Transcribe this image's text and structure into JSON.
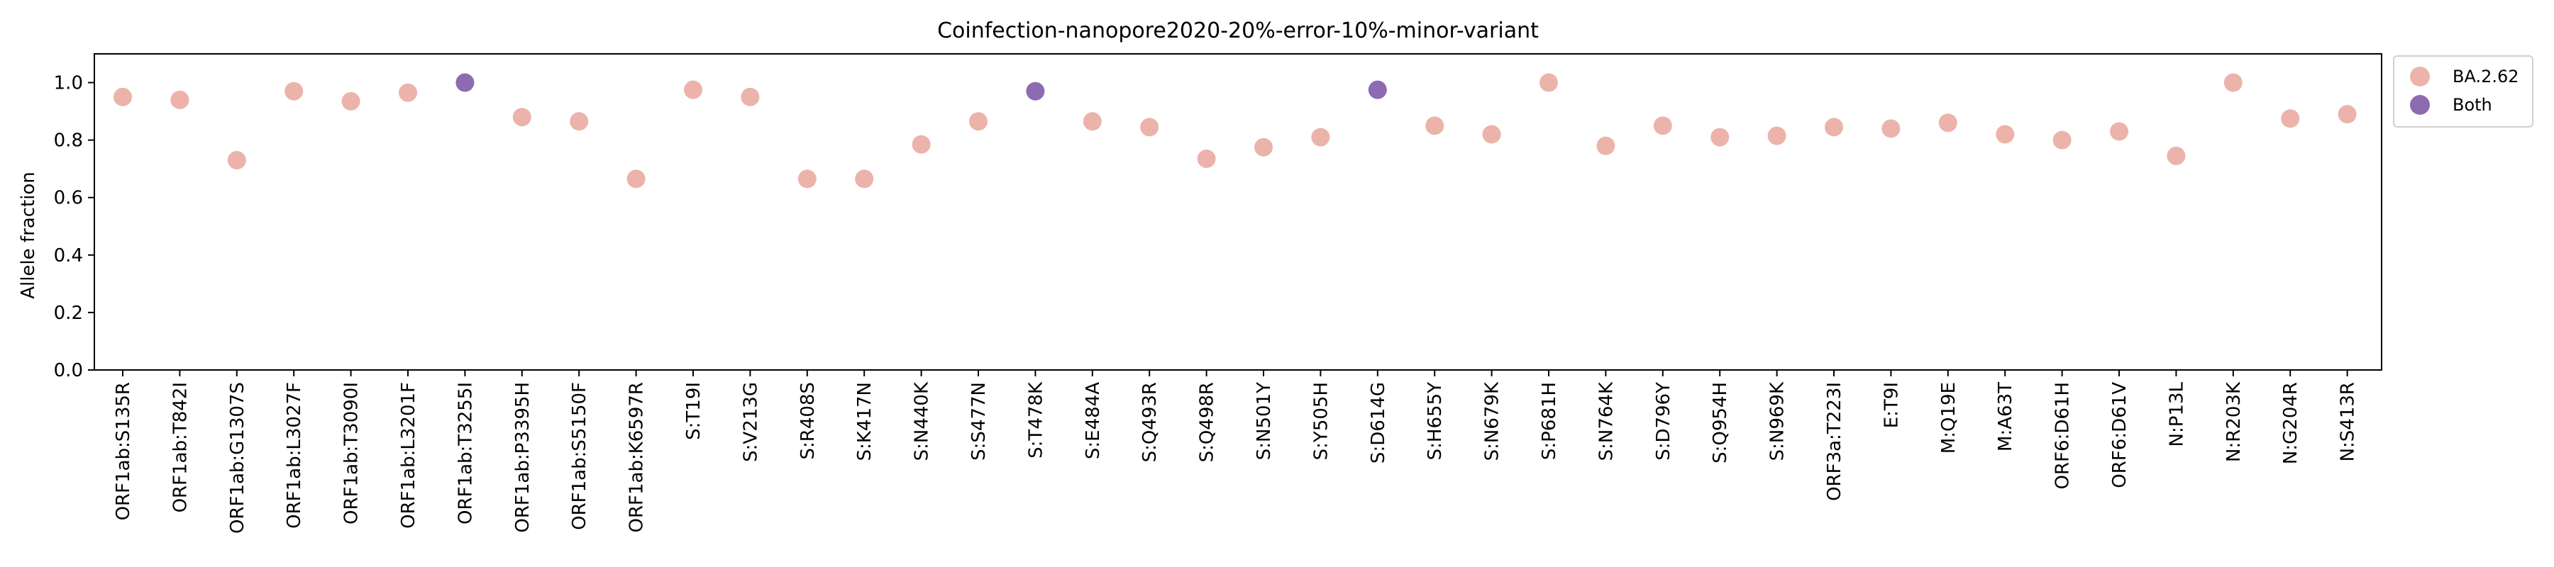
{
  "chart_data": {
    "type": "scatter",
    "title": "Coinfection-nanopore2020-20%-error-10%-minor-variant",
    "xlabel": "",
    "ylabel": "Allele fraction",
    "ylim": [
      0.0,
      1.1
    ],
    "yticks": [
      "0.0",
      "0.2",
      "0.4",
      "0.6",
      "0.8",
      "1.0"
    ],
    "grid": false,
    "legend_position": "outside-top-right",
    "categories": [
      "ORF1ab:S135R",
      "ORF1ab:T842I",
      "ORF1ab:G1307S",
      "ORF1ab:L3027F",
      "ORF1ab:T3090I",
      "ORF1ab:L3201F",
      "ORF1ab:T3255I",
      "ORF1ab:P3395H",
      "ORF1ab:S5150F",
      "ORF1ab:K6597R",
      "S:T19I",
      "S:V213G",
      "S:R408S",
      "S:K417N",
      "S:N440K",
      "S:S477N",
      "S:T478K",
      "S:E484A",
      "S:Q493R",
      "S:Q498R",
      "S:N501Y",
      "S:Y505H",
      "S:D614G",
      "S:H655Y",
      "S:N679K",
      "S:P681H",
      "S:N764K",
      "S:D796Y",
      "S:Q954H",
      "S:N969K",
      "ORF3a:T223I",
      "E:T9I",
      "M:Q19E",
      "M:A63T",
      "ORF6:D61H",
      "ORF6:D61V",
      "N:P13L",
      "N:R203K",
      "N:G204R",
      "N:S413R"
    ],
    "values": [
      0.95,
      0.94,
      0.73,
      0.97,
      0.935,
      0.965,
      1.0,
      0.88,
      0.865,
      0.665,
      0.975,
      0.95,
      0.665,
      0.665,
      0.785,
      0.865,
      0.97,
      0.865,
      0.845,
      0.735,
      0.775,
      0.81,
      0.975,
      0.85,
      0.82,
      1.0,
      0.78,
      0.85,
      0.81,
      0.815,
      0.845,
      0.84,
      0.86,
      0.82,
      0.8,
      0.83,
      0.745,
      1.0,
      0.875,
      0.89
    ],
    "groups": [
      "BA.2.62",
      "BA.2.62",
      "BA.2.62",
      "BA.2.62",
      "BA.2.62",
      "BA.2.62",
      "Both",
      "BA.2.62",
      "BA.2.62",
      "BA.2.62",
      "BA.2.62",
      "BA.2.62",
      "BA.2.62",
      "BA.2.62",
      "BA.2.62",
      "BA.2.62",
      "Both",
      "BA.2.62",
      "BA.2.62",
      "BA.2.62",
      "BA.2.62",
      "BA.2.62",
      "Both",
      "BA.2.62",
      "BA.2.62",
      "BA.2.62",
      "BA.2.62",
      "BA.2.62",
      "BA.2.62",
      "BA.2.62",
      "BA.2.62",
      "BA.2.62",
      "BA.2.62",
      "BA.2.62",
      "BA.2.62",
      "BA.2.62",
      "BA.2.62",
      "BA.2.62",
      "BA.2.62",
      "BA.2.62"
    ],
    "series": [
      {
        "name": "BA.2.62",
        "color": "#ecb3aa"
      },
      {
        "name": "Both",
        "color": "#8c6bb1"
      }
    ]
  }
}
